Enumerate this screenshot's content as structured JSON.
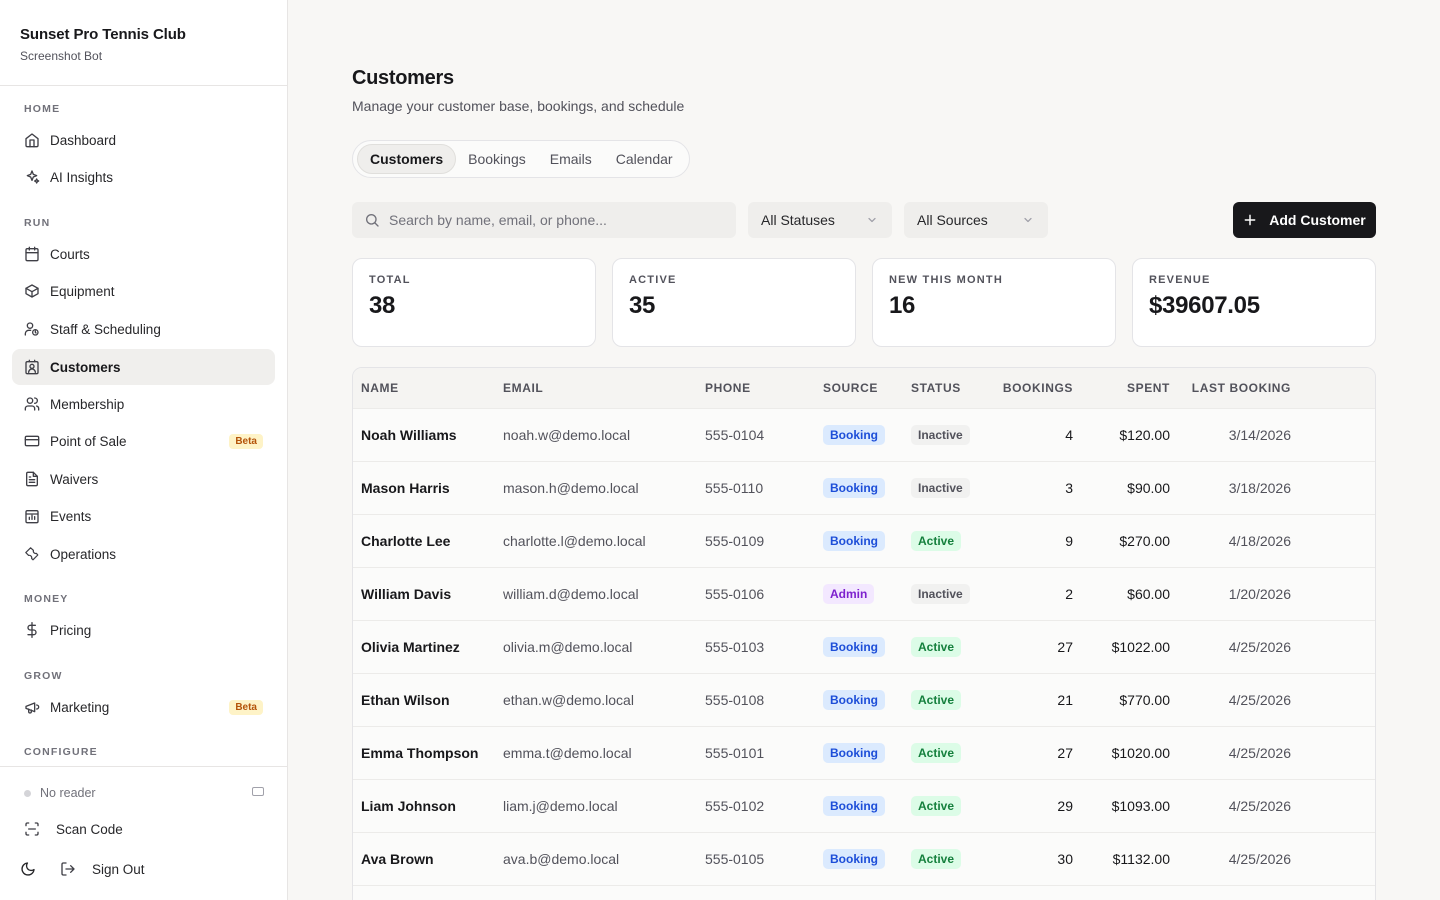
{
  "brand": {
    "title": "Sunset Pro Tennis Club",
    "subtitle": "Screenshot Bot"
  },
  "sidebar": {
    "sections": [
      "HOME",
      "RUN",
      "MONEY",
      "GROW",
      "CONFIGURE"
    ],
    "items": [
      {
        "label": "Dashboard",
        "icon": "home-icon"
      },
      {
        "label": "AI Insights",
        "icon": "sparkles-icon"
      },
      {
        "label": "Courts",
        "icon": "calendar-icon"
      },
      {
        "label": "Equipment",
        "icon": "box-icon"
      },
      {
        "label": "Staff & Scheduling",
        "icon": "user-clock-icon"
      },
      {
        "label": "Customers",
        "icon": "contact-icon",
        "active": true
      },
      {
        "label": "Membership",
        "icon": "users-icon"
      },
      {
        "label": "Point of Sale",
        "icon": "credit-card-icon",
        "badge": "Beta"
      },
      {
        "label": "Waivers",
        "icon": "file-text-icon"
      },
      {
        "label": "Events",
        "icon": "calendar-chart-icon"
      },
      {
        "label": "Operations",
        "icon": "wrench-icon"
      },
      {
        "label": "Pricing",
        "icon": "dollar-icon"
      },
      {
        "label": "Marketing",
        "icon": "megaphone-icon",
        "badge": "Beta"
      }
    ],
    "footer": {
      "reader_status": "No reader",
      "scan_label": "Scan Code",
      "signout_label": "Sign Out"
    }
  },
  "page": {
    "title": "Customers",
    "subtitle": "Manage your customer base, bookings, and schedule",
    "tabs": [
      "Customers",
      "Bookings",
      "Emails",
      "Calendar"
    ],
    "active_tab": "Customers"
  },
  "filters": {
    "search_placeholder": "Search by name, email, or phone...",
    "status_select": "All Statuses",
    "source_select": "All Sources",
    "add_button": "Add Customer"
  },
  "stats": [
    {
      "label": "TOTAL",
      "value": "38"
    },
    {
      "label": "ACTIVE",
      "value": "35"
    },
    {
      "label": "NEW THIS MONTH",
      "value": "16"
    },
    {
      "label": "REVENUE",
      "value": "$39607.05"
    }
  ],
  "table": {
    "columns": [
      "NAME",
      "EMAIL",
      "PHONE",
      "SOURCE",
      "STATUS",
      "BOOKINGS",
      "SPENT",
      "LAST BOOKING"
    ],
    "rows": [
      {
        "name": "Noah Williams",
        "email": "noah.w@demo.local",
        "phone": "555-0104",
        "source": "Booking",
        "status": "Inactive",
        "bookings": "4",
        "spent": "$120.00",
        "last": "3/14/2026"
      },
      {
        "name": "Mason Harris",
        "email": "mason.h@demo.local",
        "phone": "555-0110",
        "source": "Booking",
        "status": "Inactive",
        "bookings": "3",
        "spent": "$90.00",
        "last": "3/18/2026"
      },
      {
        "name": "Charlotte Lee",
        "email": "charlotte.l@demo.local",
        "phone": "555-0109",
        "source": "Booking",
        "status": "Active",
        "bookings": "9",
        "spent": "$270.00",
        "last": "4/18/2026"
      },
      {
        "name": "William Davis",
        "email": "william.d@demo.local",
        "phone": "555-0106",
        "source": "Admin",
        "status": "Inactive",
        "bookings": "2",
        "spent": "$60.00",
        "last": "1/20/2026"
      },
      {
        "name": "Olivia Martinez",
        "email": "olivia.m@demo.local",
        "phone": "555-0103",
        "source": "Booking",
        "status": "Active",
        "bookings": "27",
        "spent": "$1022.00",
        "last": "4/25/2026"
      },
      {
        "name": "Ethan Wilson",
        "email": "ethan.w@demo.local",
        "phone": "555-0108",
        "source": "Booking",
        "status": "Active",
        "bookings": "21",
        "spent": "$770.00",
        "last": "4/25/2026"
      },
      {
        "name": "Emma Thompson",
        "email": "emma.t@demo.local",
        "phone": "555-0101",
        "source": "Booking",
        "status": "Active",
        "bookings": "27",
        "spent": "$1020.00",
        "last": "4/25/2026"
      },
      {
        "name": "Liam Johnson",
        "email": "liam.j@demo.local",
        "phone": "555-0102",
        "source": "Booking",
        "status": "Active",
        "bookings": "29",
        "spent": "$1093.00",
        "last": "4/25/2026"
      },
      {
        "name": "Ava Brown",
        "email": "ava.b@demo.local",
        "phone": "555-0105",
        "source": "Booking",
        "status": "Active",
        "bookings": "30",
        "spent": "$1132.00",
        "last": "4/25/2026"
      }
    ]
  }
}
